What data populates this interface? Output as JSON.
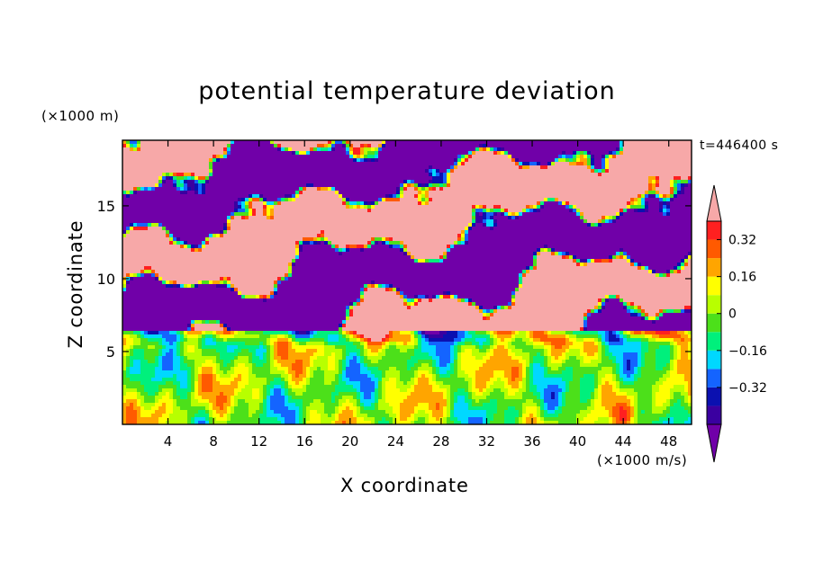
{
  "chart_data": {
    "type": "heatmap",
    "title": "potential temperature deviation",
    "xlabel": "X coordinate",
    "ylabel": "Z coordinate",
    "x_unit_label": "(×1000 m/s)",
    "y_unit_label": "(×1000 m)",
    "time_label": "t=446400 s",
    "xlim": [
      0,
      50
    ],
    "ylim": [
      0,
      19.5
    ],
    "x_ticks": [
      4,
      8,
      12,
      16,
      20,
      24,
      28,
      32,
      36,
      40,
      44,
      48
    ],
    "y_ticks": [
      5,
      10,
      15
    ],
    "colorbar": {
      "levels": [
        -0.48,
        -0.4,
        -0.32,
        -0.24,
        -0.16,
        -0.08,
        0,
        0.08,
        0.16,
        0.24,
        0.32,
        0.4
      ],
      "tick_labels": [
        "0.32",
        "0.16",
        "0",
        "−0.16",
        "−0.32"
      ],
      "tick_values": [
        0.32,
        0.16,
        0,
        -0.16,
        -0.32
      ],
      "extend": "both",
      "colors": {
        "below_min": "#7000a8",
        "bins": [
          "#3a00a0",
          "#0b10b0",
          "#1464ff",
          "#00d8ff",
          "#00f07c",
          "#4ce01a",
          "#b8ff00",
          "#ffff00",
          "#ffa500",
          "#ff5a00",
          "#ff2020"
        ],
        "above_max": "#f7a8a8"
      }
    },
    "field_description": "pink (>0.40) and purple (<-0.48) alternating layers above z≈6 km, turbulent mixed layer below"
  }
}
